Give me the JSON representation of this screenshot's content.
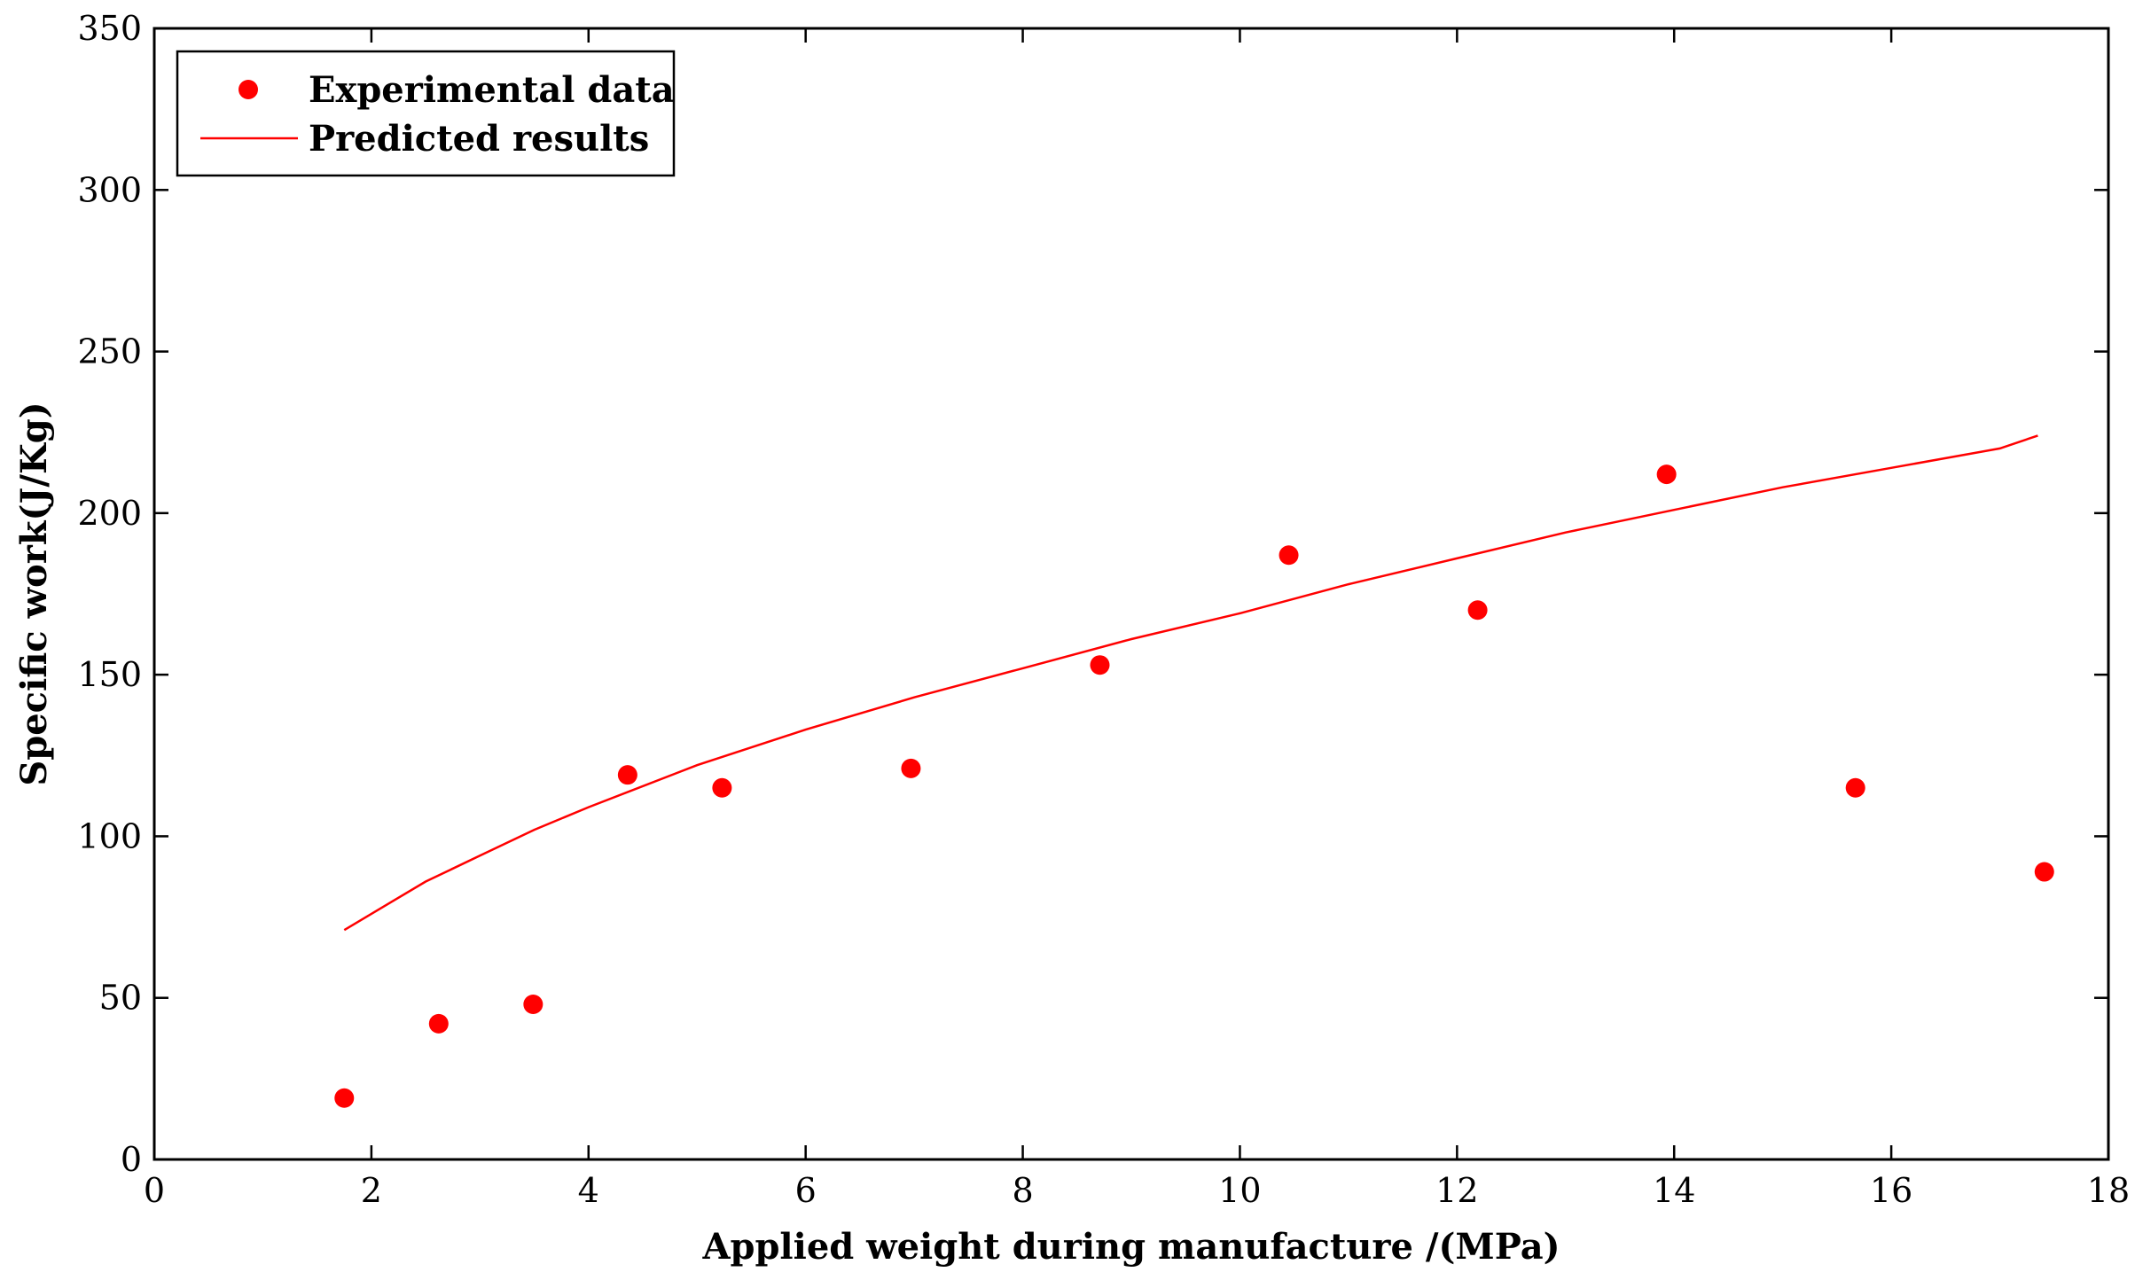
{
  "chart_data": {
    "type": "scatter",
    "title": "",
    "xlabel": "Applied weight during manufacture /(MPa)",
    "ylabel": "Specific work(J/Kg)",
    "xlim": [
      0,
      18
    ],
    "ylim": [
      0,
      350
    ],
    "xticks": [
      0,
      2,
      4,
      6,
      8,
      10,
      12,
      14,
      16,
      18
    ],
    "yticks": [
      0,
      50,
      100,
      150,
      200,
      250,
      300,
      350
    ],
    "xtick_labels": [
      "0",
      "2",
      "4",
      "6",
      "8",
      "10",
      "12",
      "14",
      "16",
      "18"
    ],
    "ytick_labels": [
      "0",
      "50",
      "100",
      "150",
      "200",
      "250",
      "300",
      "350"
    ],
    "grid": false,
    "legend_position": "top-left",
    "series": [
      {
        "name": "Experimental data",
        "kind": "scatter",
        "color": "#ff0000",
        "x": [
          1.75,
          2.62,
          3.49,
          4.36,
          5.23,
          6.97,
          8.71,
          10.45,
          12.19,
          13.93,
          15.67,
          17.41
        ],
        "y": [
          19,
          42,
          48,
          119,
          115,
          121,
          153,
          187,
          170,
          212,
          115,
          89
        ]
      },
      {
        "name": "Predicted results",
        "kind": "line",
        "color": "#ff0000",
        "x": [
          1.75,
          2.0,
          2.5,
          3.0,
          3.5,
          4.0,
          5.0,
          6.0,
          7.0,
          8.0,
          9.0,
          10.0,
          11.0,
          12.0,
          13.0,
          14.0,
          15.0,
          16.0,
          17.0,
          17.35
        ],
        "y": [
          71,
          76,
          86,
          94,
          102,
          109,
          122,
          133,
          143,
          152,
          161,
          169,
          178,
          186,
          194,
          201,
          208,
          214,
          220,
          224
        ]
      }
    ]
  }
}
